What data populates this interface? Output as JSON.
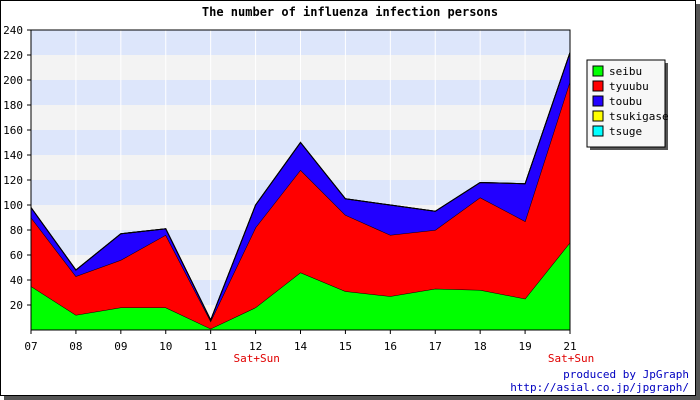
{
  "chart_data": {
    "type": "area",
    "stacked": true,
    "title": "The number of influenza infection persons",
    "categories": [
      "07",
      "08",
      "09",
      "10",
      "11",
      "12",
      "14",
      "15",
      "16",
      "17",
      "18",
      "19",
      "21"
    ],
    "ylim": [
      0,
      240
    ],
    "yticks": [
      "20",
      "40",
      "60",
      "80",
      "100",
      "120",
      "140",
      "160",
      "180",
      "200",
      "220",
      "240"
    ],
    "grid": true,
    "legend_position": "right",
    "series": [
      {
        "name": "seibu",
        "color": "#00ff00",
        "values": [
          35,
          12,
          18,
          18,
          1,
          18,
          46,
          31,
          27,
          33,
          32,
          25,
          70
        ]
      },
      {
        "name": "tyuubu",
        "color": "#ff0000",
        "values": [
          55,
          31,
          38,
          58,
          6,
          64,
          82,
          61,
          49,
          47,
          74,
          62,
          129
        ]
      },
      {
        "name": "toubu",
        "color": "#2200ff",
        "values": [
          8,
          5,
          21,
          5,
          1,
          18,
          22,
          13,
          24,
          15,
          12,
          30,
          23
        ]
      },
      {
        "name": "tsukigase",
        "color": "#ffff00",
        "values": [
          0,
          0,
          0,
          0,
          0,
          0,
          0,
          0,
          0,
          0,
          0,
          0,
          0
        ]
      },
      {
        "name": "tsuge",
        "color": "#00ffff",
        "values": [
          0,
          0,
          0,
          0,
          0,
          0,
          0,
          0,
          0,
          0,
          0,
          0,
          0
        ]
      }
    ],
    "annotations": [
      {
        "category": "11",
        "text": "Sat+Sun"
      },
      {
        "category": "19",
        "text": "Sat+Sun"
      }
    ]
  },
  "credit": {
    "line1": "produced by JpGraph",
    "line2": "http://asial.co.jp/jpgraph/"
  },
  "colors": {
    "band_blue": "#dde6fb",
    "band_gray": "#f3f3f3"
  }
}
